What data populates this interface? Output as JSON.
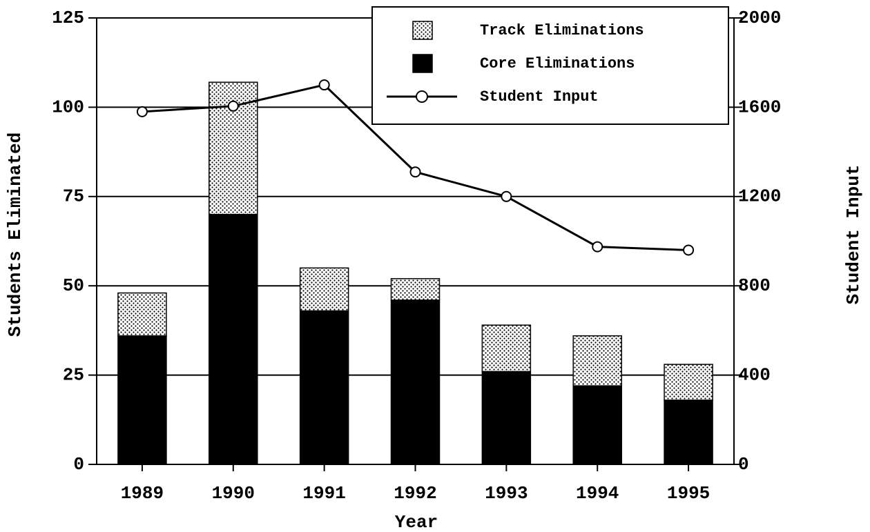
{
  "chart_data": {
    "type": "bar",
    "stacked": true,
    "x_label": "Year",
    "y_label": "Students Eliminated",
    "y2_label": "Student Input",
    "categories": [
      "1989",
      "1990",
      "1991",
      "1992",
      "1993",
      "1994",
      "1995"
    ],
    "series": [
      {
        "name": "Core Eliminations",
        "type": "bar",
        "color": "#000000",
        "values": [
          36,
          70,
          43,
          46,
          26,
          22,
          18
        ]
      },
      {
        "name": "Track Eliminations",
        "type": "bar",
        "pattern": "dotted",
        "color": "#000000",
        "values": [
          12,
          37,
          12,
          6,
          13,
          14,
          10
        ]
      },
      {
        "name": "Student Input",
        "type": "line",
        "axis": "y2",
        "color": "#000000",
        "values": [
          1580,
          1605,
          1700,
          1310,
          1200,
          975,
          960
        ]
      }
    ],
    "ylim": [
      0,
      125
    ],
    "yticks": [
      0,
      25,
      50,
      75,
      100,
      125
    ],
    "y2lim": [
      0,
      2000
    ],
    "y2ticks": [
      0,
      400,
      800,
      1200,
      1600,
      2000
    ],
    "grid": true,
    "legend": "upper right"
  }
}
